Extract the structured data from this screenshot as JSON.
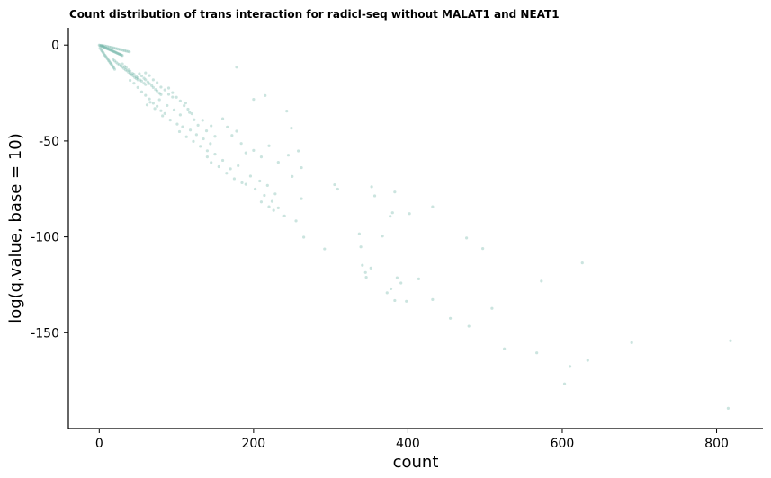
{
  "chart_data": {
    "type": "scatter",
    "title": "Count distribution of trans interaction for radicl-seq without MALAT1 and NEAT1",
    "xlabel": "count",
    "ylabel": "log(q.value, base = 10)",
    "xlim": [
      -40,
      860
    ],
    "ylim": [
      -200,
      9
    ],
    "x_ticks": [
      0,
      200,
      400,
      600,
      800
    ],
    "y_ticks": [
      0,
      -50,
      -100,
      -150
    ],
    "x_tick_labels": [
      "0",
      "200",
      "400",
      "600",
      "800"
    ],
    "y_tick_labels": [
      "0",
      "-50",
      "-100",
      "-150"
    ],
    "grid": false,
    "legend": "none",
    "point_color": "#69b3a2",
    "point_alpha": 0.35,
    "series": [
      {
        "points": [
          [
            0,
            0
          ],
          [
            1,
            -0.2
          ],
          [
            2,
            -0.4
          ],
          [
            3,
            -0.5
          ],
          [
            4,
            -0.7
          ],
          [
            5,
            -0.9
          ],
          [
            6,
            -1
          ],
          [
            7,
            -1.3
          ],
          [
            8,
            -1.4
          ],
          [
            9,
            -1.6
          ],
          [
            10,
            -1.8
          ],
          [
            11,
            -2
          ],
          [
            12,
            -2.1
          ],
          [
            13,
            -2.3
          ],
          [
            14,
            -2.5
          ],
          [
            15,
            -2.6
          ],
          [
            16,
            -2.9
          ],
          [
            17,
            -3
          ],
          [
            18,
            -3.2
          ],
          [
            19,
            -3.4
          ],
          [
            20,
            -3.6
          ],
          [
            21,
            -3.7
          ],
          [
            22,
            -3.9
          ],
          [
            23,
            -4.2
          ],
          [
            24,
            -4.3
          ],
          [
            25,
            -4.5
          ],
          [
            26,
            -4.7
          ],
          [
            27,
            -4.8
          ],
          [
            28,
            -5
          ],
          [
            29,
            -5.3
          ],
          [
            30,
            -5.4
          ],
          [
            1,
            -1.5
          ],
          [
            2,
            -2.1
          ],
          [
            3,
            -2.8
          ],
          [
            4,
            -3.3
          ],
          [
            5,
            -3.9
          ],
          [
            6,
            -4.5
          ],
          [
            7,
            -5.2
          ],
          [
            8,
            -5.6
          ],
          [
            9,
            -6.2
          ],
          [
            10,
            -6.8
          ],
          [
            11,
            -7.3
          ],
          [
            12,
            -8
          ],
          [
            13,
            -8.4
          ],
          [
            14,
            -9.1
          ],
          [
            15,
            -9.6
          ],
          [
            16,
            -10.1
          ],
          [
            17,
            -10.8
          ],
          [
            18,
            -11.3
          ],
          [
            19,
            -11.9
          ],
          [
            20,
            -12.6
          ],
          [
            3,
            -0.1
          ],
          [
            5,
            -0.3
          ],
          [
            7,
            -0.4
          ],
          [
            9,
            -0.6
          ],
          [
            11,
            -0.8
          ],
          [
            13,
            -1
          ],
          [
            15,
            -1.1
          ],
          [
            17,
            -1.3
          ],
          [
            19,
            -1.5
          ],
          [
            21,
            -1.7
          ],
          [
            23,
            -1.9
          ],
          [
            25,
            -2.1
          ],
          [
            27,
            -2.3
          ],
          [
            29,
            -2.4
          ],
          [
            31,
            -2.7
          ],
          [
            33,
            -2.9
          ],
          [
            35,
            -3.1
          ],
          [
            37,
            -3.3
          ],
          [
            39,
            -3.5
          ],
          [
            18,
            -7.5
          ],
          [
            20,
            -8.2
          ],
          [
            22,
            -8.9
          ],
          [
            24,
            -9.7
          ],
          [
            26,
            -10.1
          ],
          [
            28,
            -10.9
          ],
          [
            30,
            -11.5
          ],
          [
            32,
            -12.2
          ],
          [
            34,
            -12.9
          ],
          [
            36,
            -13.4
          ],
          [
            38,
            -14.2
          ],
          [
            40,
            -14.8
          ],
          [
            42,
            -15.5
          ],
          [
            44,
            -16.1
          ],
          [
            46,
            -16.9
          ],
          [
            48,
            -17.4
          ],
          [
            50,
            -18.1
          ],
          [
            30,
            -9.8
          ],
          [
            33,
            -11.1
          ],
          [
            35,
            -11.8
          ],
          [
            38,
            -12.9
          ],
          [
            40,
            -13.6
          ],
          [
            43,
            -14.7
          ],
          [
            45,
            -15.2
          ],
          [
            48,
            -16.4
          ],
          [
            50,
            -17.1
          ],
          [
            53,
            -18.2
          ],
          [
            55,
            -18.8
          ],
          [
            58,
            -19.9
          ],
          [
            60,
            -20.6
          ],
          [
            52,
            -14.9
          ],
          [
            55,
            -16.1
          ],
          [
            58,
            -17.3
          ],
          [
            60,
            -18.1
          ],
          [
            63,
            -19.2
          ],
          [
            65,
            -20.1
          ],
          [
            68,
            -21.1
          ],
          [
            70,
            -22.1
          ],
          [
            73,
            -23.2
          ],
          [
            75,
            -23.9
          ],
          [
            78,
            -25.1
          ],
          [
            80,
            -25.8
          ],
          [
            40,
            -18.4
          ],
          [
            45,
            -19.9
          ],
          [
            50,
            -22.1
          ],
          [
            55,
            -24.4
          ],
          [
            60,
            -26.2
          ],
          [
            65,
            -28.1
          ],
          [
            70,
            -30.3
          ],
          [
            75,
            -31.9
          ],
          [
            80,
            -34.2
          ],
          [
            85,
            -35.7
          ],
          [
            60,
            -14.5
          ],
          [
            65,
            -15.9
          ],
          [
            70,
            -18.1
          ],
          [
            75,
            -19.6
          ],
          [
            80,
            -21.9
          ],
          [
            85,
            -23.4
          ],
          [
            90,
            -25.7
          ],
          [
            95,
            -27.1
          ],
          [
            62,
            -31.2
          ],
          [
            66,
            -29.8
          ],
          [
            72,
            -33.1
          ],
          [
            78,
            -28.5
          ],
          [
            82,
            -36.9
          ],
          [
            88,
            -31.5
          ],
          [
            92,
            -39.1
          ],
          [
            97,
            -33.8
          ],
          [
            101,
            -41.2
          ],
          [
            105,
            -36.4
          ],
          [
            90,
            -22.4
          ],
          [
            95,
            -24.8
          ],
          [
            100,
            -27.2
          ],
          [
            105,
            -29.1
          ],
          [
            110,
            -31.6
          ],
          [
            115,
            -33.4
          ],
          [
            120,
            -35.8
          ],
          [
            104,
            -45.1
          ],
          [
            108,
            -42.6
          ],
          [
            113,
            -47.8
          ],
          [
            118,
            -44.3
          ],
          [
            122,
            -50.2
          ],
          [
            126,
            -46.7
          ],
          [
            131,
            -52.8
          ],
          [
            135,
            -48.9
          ],
          [
            140,
            -55.1
          ],
          [
            144,
            -51.4
          ],
          [
            112,
            -30.2
          ],
          [
            117,
            -35.1
          ],
          [
            123,
            -38.9
          ],
          [
            128,
            -41.8
          ],
          [
            134,
            -39.2
          ],
          [
            139,
            -44.7
          ],
          [
            145,
            -42.1
          ],
          [
            150,
            -47.6
          ],
          [
            140,
            -58.3
          ],
          [
            145,
            -61.2
          ],
          [
            150,
            -56.9
          ],
          [
            155,
            -63.4
          ],
          [
            160,
            -60.1
          ],
          [
            165,
            -66.8
          ],
          [
            170,
            -64.5
          ],
          [
            175,
            -69.7
          ],
          [
            180,
            -62.9
          ],
          [
            185,
            -71.8
          ],
          [
            160,
            -38.4
          ],
          [
            166,
            -42.7
          ],
          [
            172,
            -47.1
          ],
          [
            178,
            -44.9
          ],
          [
            184,
            -51.3
          ],
          [
            190,
            -56.2
          ],
          [
            178,
            -11.5
          ],
          [
            200,
            -28.3
          ],
          [
            215,
            -26.3
          ],
          [
            243,
            -34.4
          ],
          [
            249,
            -43.3
          ],
          [
            190,
            -72.6
          ],
          [
            196,
            -68.3
          ],
          [
            202,
            -75.1
          ],
          [
            208,
            -70.9
          ],
          [
            214,
            -78.4
          ],
          [
            218,
            -73.2
          ],
          [
            224,
            -81.5
          ],
          [
            228,
            -77.6
          ],
          [
            232,
            -84.9
          ],
          [
            200,
            -54.9
          ],
          [
            210,
            -58.3
          ],
          [
            220,
            -52.5
          ],
          [
            232,
            -61.1
          ],
          [
            245,
            -57.4
          ],
          [
            250,
            -68.5
          ],
          [
            258,
            -55.2
          ],
          [
            262,
            -63.9
          ],
          [
            210,
            -81.8
          ],
          [
            220,
            -84.3
          ],
          [
            226,
            -86.2
          ],
          [
            240,
            -89.1
          ],
          [
            255,
            -91.7
          ],
          [
            262,
            -80.1
          ],
          [
            265,
            -100.2
          ],
          [
            292,
            -106.3
          ],
          [
            305,
            -72.8
          ],
          [
            309,
            -75.1
          ],
          [
            353,
            -73.9
          ],
          [
            357,
            -78.6
          ],
          [
            377,
            -89.3
          ],
          [
            380,
            -87.4
          ],
          [
            383,
            -76.6
          ],
          [
            402,
            -87.9
          ],
          [
            432,
            -84.3
          ],
          [
            337,
            -98.4
          ],
          [
            339,
            -105.2
          ],
          [
            341,
            -114.8
          ],
          [
            345,
            -118.6
          ],
          [
            346,
            -121.1
          ],
          [
            352,
            -116.3
          ],
          [
            367,
            -99.6
          ],
          [
            373,
            -129.2
          ],
          [
            378,
            -127.1
          ],
          [
            383,
            -133.2
          ],
          [
            386,
            -121.3
          ],
          [
            391,
            -124.1
          ],
          [
            398,
            -133.6
          ],
          [
            414,
            -121.9
          ],
          [
            432,
            -132.7
          ],
          [
            455,
            -142.5
          ],
          [
            476,
            -100.6
          ],
          [
            479,
            -146.6
          ],
          [
            497,
            -106.1
          ],
          [
            509,
            -137.3
          ],
          [
            525,
            -158.4
          ],
          [
            567,
            -160.5
          ],
          [
            573,
            -123.1
          ],
          [
            603,
            -176.7
          ],
          [
            610,
            -167.6
          ],
          [
            626,
            -113.6
          ],
          [
            633,
            -164.4
          ],
          [
            690,
            -155.2
          ],
          [
            815,
            -189.4
          ],
          [
            818,
            -154.2
          ]
        ]
      }
    ]
  }
}
